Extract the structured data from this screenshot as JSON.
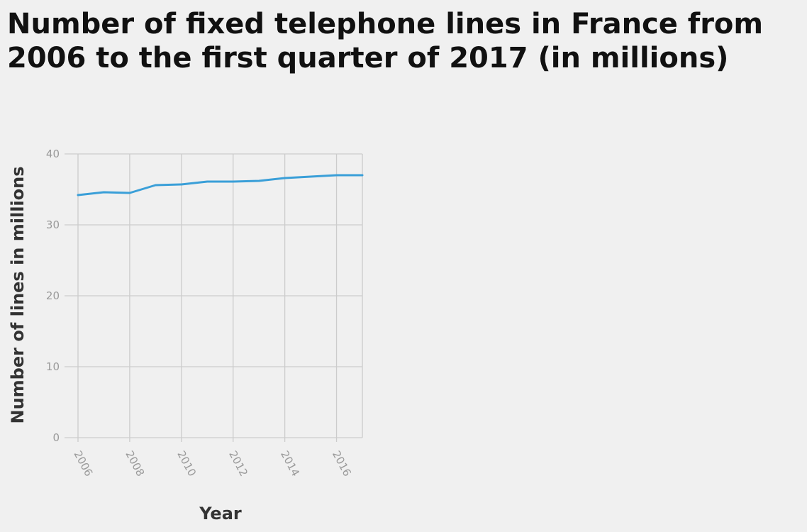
{
  "chart_data": {
    "type": "line",
    "title": "Number of fixed telephone lines in France from 2006 to the first quarter of 2017 (in millions)",
    "xlabel": "Year",
    "ylabel": "Number of lines in millions",
    "x": [
      2006,
      2007,
      2008,
      2009,
      2010,
      2011,
      2012,
      2013,
      2014,
      2015,
      2016,
      2017
    ],
    "series": [
      {
        "values": [
          34.2,
          34.6,
          34.5,
          35.6,
          35.7,
          36.1,
          36.1,
          36.2,
          36.6,
          36.8,
          37.0,
          37.0
        ]
      }
    ],
    "xticks": [
      "2006",
      "2008",
      "2010",
      "2012",
      "2014",
      "2016"
    ],
    "yticks": [
      "0",
      "10",
      "20",
      "30",
      "40"
    ],
    "xlim": [
      2006,
      2017
    ],
    "ylim": [
      0,
      40
    ],
    "grid": true,
    "legend": "none",
    "colors": {
      "line": "#3a9fd8",
      "grid": "#cccccc",
      "tick_text": "#9a9a9a",
      "axis_title": "#333333",
      "background": "#f0f0f0"
    }
  }
}
